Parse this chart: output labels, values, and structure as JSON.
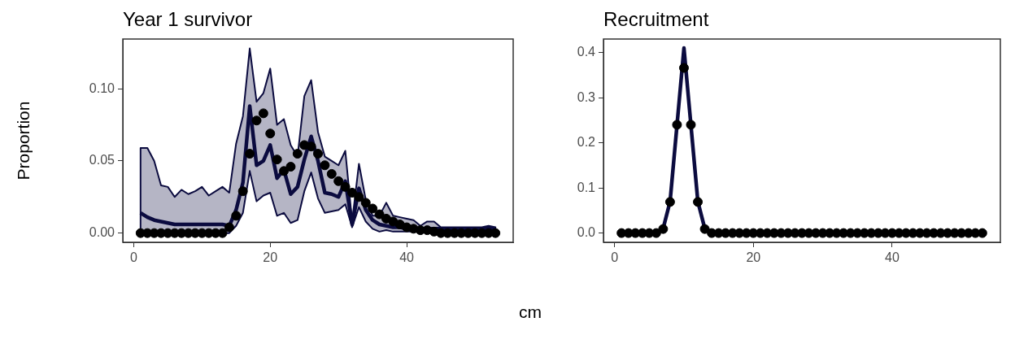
{
  "chart_data": [
    {
      "type": "line",
      "title": "Year 1 survivor",
      "ylabel": "Proportion",
      "xlabel": "cm",
      "x": [
        1,
        2,
        3,
        4,
        5,
        6,
        7,
        8,
        9,
        10,
        11,
        12,
        13,
        14,
        15,
        16,
        17,
        18,
        19,
        20,
        21,
        22,
        23,
        24,
        25,
        26,
        27,
        28,
        29,
        30,
        31,
        32,
        33,
        34,
        35,
        36,
        37,
        38,
        39,
        40,
        41,
        42,
        43,
        44,
        45,
        46,
        47,
        48,
        49,
        50,
        51,
        52,
        53
      ],
      "xlim": [
        -1.6,
        55.6
      ],
      "xticks": [
        0,
        20,
        40
      ],
      "ylim": [
        -0.0064,
        0.1345
      ],
      "yticks": [
        {
          "value": 0,
          "label": "0.00"
        },
        {
          "value": 0.05,
          "label": "0.05"
        },
        {
          "value": 0.1,
          "label": "0.10"
        }
      ],
      "grid": false,
      "legend": false,
      "line_style": "solid",
      "series": [
        {
          "type": "line",
          "color": "#0b0b3f",
          "marker": "none",
          "values": [
            0.014,
            0.011,
            0.009,
            0.008,
            0.007,
            0.006,
            0.006,
            0.006,
            0.006,
            0.006,
            0.006,
            0.006,
            0.006,
            0.005,
            0.016,
            0.035,
            0.088,
            0.047,
            0.05,
            0.061,
            0.038,
            0.044,
            0.027,
            0.032,
            0.051,
            0.067,
            0.05,
            0.028,
            0.027,
            0.025,
            0.036,
            0.006,
            0.031,
            0.016,
            0.009,
            0.006,
            0.005,
            0.004,
            0.004,
            0.003,
            0.003,
            0.003,
            0.003,
            0.003,
            0.003,
            0.003,
            0.003,
            0.003,
            0.003,
            0.003,
            0.003,
            0.003,
            0.003
          ],
          "upper": [
            0.059,
            0.059,
            0.05,
            0.033,
            0.032,
            0.025,
            0.03,
            0.027,
            0.029,
            0.032,
            0.026,
            0.029,
            0.032,
            0.028,
            0.062,
            0.081,
            0.128,
            0.091,
            0.097,
            0.114,
            0.075,
            0.079,
            0.061,
            0.053,
            0.095,
            0.106,
            0.07,
            0.053,
            0.05,
            0.047,
            0.057,
            0.008,
            0.048,
            0.023,
            0.012,
            0.012,
            0.021,
            0.012,
            0.011,
            0.01,
            0.009,
            0.005,
            0.008,
            0.008,
            0.004,
            0.004,
            0.004,
            0.004,
            0.004,
            0.004,
            0.004,
            0.005,
            0.004
          ],
          "lower": [
            0,
            0,
            0,
            0,
            0,
            0,
            0,
            0,
            0,
            0,
            0,
            0,
            0,
            0,
            0.005,
            0.014,
            0.043,
            0.022,
            0.026,
            0.028,
            0.012,
            0.014,
            0.007,
            0.009,
            0.029,
            0.042,
            0.024,
            0.014,
            0.015,
            0.016,
            0.02,
            0.004,
            0.018,
            0.008,
            0.003,
            0.001,
            0.002,
            0.001,
            0.001,
            0.001,
            0.001,
            0.001,
            0.001,
            0.001,
            0.001,
            0.001,
            0.001,
            0.001,
            0.001,
            0.001,
            0.001,
            0.001,
            0.001
          ]
        },
        {
          "type": "scatter",
          "color": "#000000",
          "marker": "circle",
          "values": [
            0,
            0,
            0,
            0,
            0,
            0,
            0,
            0,
            0,
            0,
            0,
            0,
            0,
            0.004,
            0.012,
            0.029,
            0.055,
            0.078,
            0.083,
            0.069,
            0.051,
            0.043,
            0.046,
            0.055,
            0.061,
            0.06,
            0.055,
            0.047,
            0.041,
            0.036,
            0.032,
            0.028,
            0.025,
            0.021,
            0.017,
            0.013,
            0.01,
            0.008,
            0.006,
            0.004,
            0.003,
            0.002,
            0.002,
            0.001,
            0,
            0,
            0,
            0,
            0,
            0,
            0,
            0,
            0
          ]
        }
      ]
    },
    {
      "type": "line",
      "title": "Recruitment",
      "x": [
        1,
        2,
        3,
        4,
        5,
        6,
        7,
        8,
        9,
        10,
        11,
        12,
        13,
        14,
        15,
        16,
        17,
        18,
        19,
        20,
        21,
        22,
        23,
        24,
        25,
        26,
        27,
        28,
        29,
        30,
        31,
        32,
        33,
        34,
        35,
        36,
        37,
        38,
        39,
        40,
        41,
        42,
        43,
        44,
        45,
        46,
        47,
        48,
        49,
        50,
        51,
        52,
        53
      ],
      "xlim": [
        -1.6,
        55.6
      ],
      "xticks": [
        0,
        20,
        40
      ],
      "ylim": [
        -0.0205,
        0.43
      ],
      "yticks": [
        {
          "value": 0,
          "label": "0.0"
        },
        {
          "value": 0.1,
          "label": "0.1"
        },
        {
          "value": 0.2,
          "label": "0.2"
        },
        {
          "value": 0.3,
          "label": "0.3"
        },
        {
          "value": 0.4,
          "label": "0.4"
        }
      ],
      "grid": false,
      "legend": false,
      "line_style": "solid",
      "series": [
        {
          "type": "line",
          "color": "#0b0b3f",
          "marker": "none",
          "values": [
            0,
            0,
            0,
            0,
            0,
            0,
            0.01,
            0.07,
            0.24,
            0.41,
            0.24,
            0.07,
            0.01,
            0,
            0,
            0,
            0,
            0,
            0,
            0,
            0,
            0,
            0,
            0,
            0,
            0,
            0,
            0,
            0,
            0,
            0,
            0,
            0,
            0,
            0,
            0,
            0,
            0,
            0,
            0,
            0,
            0,
            0,
            0,
            0,
            0,
            0,
            0,
            0,
            0,
            0,
            0,
            0
          ]
        },
        {
          "type": "scatter",
          "color": "#000000",
          "marker": "circle",
          "values": [
            0,
            0,
            0,
            0,
            0,
            0,
            0.009,
            0.069,
            0.24,
            0.366,
            0.24,
            0.069,
            0.009,
            0,
            0,
            0,
            0,
            0,
            0,
            0,
            0,
            0,
            0,
            0,
            0,
            0,
            0,
            0,
            0,
            0,
            0,
            0,
            0,
            0,
            0,
            0,
            0,
            0,
            0,
            0,
            0,
            0,
            0,
            0,
            0,
            0,
            0,
            0,
            0,
            0,
            0,
            0,
            0
          ]
        }
      ]
    }
  ]
}
